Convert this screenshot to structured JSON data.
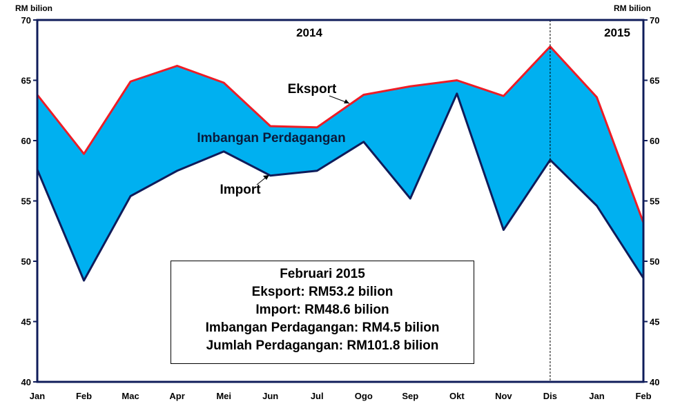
{
  "chart_data": {
    "type": "area",
    "categories": [
      "Jan",
      "Feb",
      "Mac",
      "Apr",
      "Mei",
      "Jun",
      "Jul",
      "Ogo",
      "Sep",
      "Okt",
      "Nov",
      "Dis",
      "Jan",
      "Feb"
    ],
    "series": [
      {
        "name": "Eksport",
        "color": "#ee1c25",
        "values": [
          63.8,
          58.9,
          64.9,
          66.2,
          64.8,
          61.2,
          61.1,
          63.8,
          64.5,
          65.0,
          63.7,
          67.8,
          63.6,
          53.2
        ]
      },
      {
        "name": "Import",
        "color": "#0f1c5a",
        "values": [
          57.6,
          48.4,
          55.4,
          57.5,
          59.1,
          57.1,
          57.5,
          59.9,
          55.2,
          63.9,
          52.6,
          58.4,
          54.6,
          48.6
        ]
      }
    ],
    "band": {
      "name": "Imbangan Perdagangan",
      "color": "#00b0f0"
    },
    "ylim": [
      40,
      70
    ],
    "yticks": [
      "40",
      "45",
      "50",
      "55",
      "60",
      "65",
      "70"
    ],
    "ylabel_left": "RM bilion",
    "ylabel_right": "RM bilion",
    "periods": [
      {
        "label": "2014"
      },
      {
        "label": "2015"
      }
    ],
    "divider_after_category_index": 11,
    "grid": false,
    "legend": "none"
  },
  "info_box": {
    "title": "Februari 2015",
    "line1": "Eksport: RM53.2 bilion",
    "line2": "Import: RM48.6 bilion",
    "line3": "Imbangan Perdagangan: RM4.5 bilion",
    "line4": "Jumlah Perdagangan: RM101.8 bilion"
  }
}
